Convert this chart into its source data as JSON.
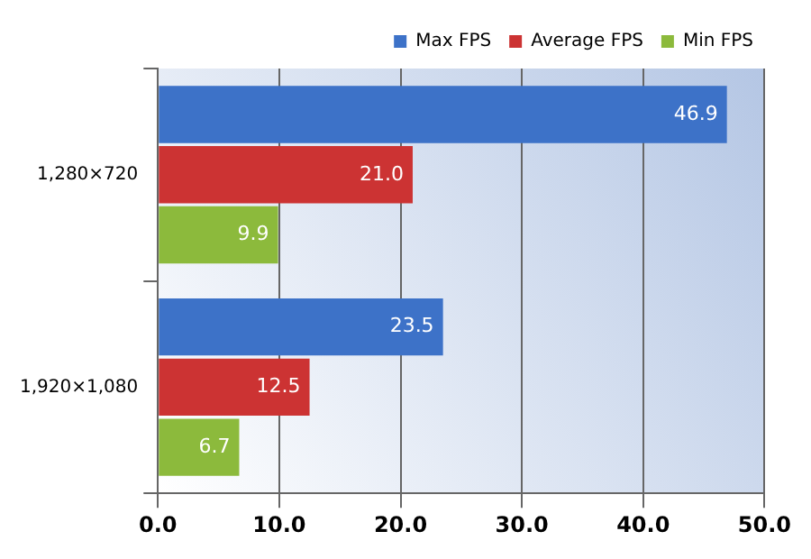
{
  "chart_data": {
    "type": "bar",
    "orientation": "horizontal",
    "categories": [
      "1,280×720",
      "1,920×1,080"
    ],
    "series": [
      {
        "name": "Max FPS",
        "color": "#3d72c8",
        "values": [
          46.9,
          23.5
        ],
        "value_labels": [
          "46.9",
          "23.5"
        ]
      },
      {
        "name": "Average FPS",
        "color": "#cc3333",
        "values": [
          21.0,
          12.5
        ],
        "value_labels": [
          "21.0",
          "12.5"
        ]
      },
      {
        "name": "Min FPS",
        "color": "#8cba3c",
        "values": [
          9.9,
          6.7
        ],
        "value_labels": [
          "9.9",
          "6.7"
        ]
      }
    ],
    "xlim": [
      0,
      50
    ],
    "xticks": [
      {
        "value": 0,
        "label": "0.0"
      },
      {
        "value": 10,
        "label": "10.0"
      },
      {
        "value": 20,
        "label": "20.0"
      },
      {
        "value": 30,
        "label": "30.0"
      },
      {
        "value": 40,
        "label": "40.0"
      },
      {
        "value": 50,
        "label": "50.0"
      }
    ],
    "grid": "x",
    "legend": "top right"
  }
}
